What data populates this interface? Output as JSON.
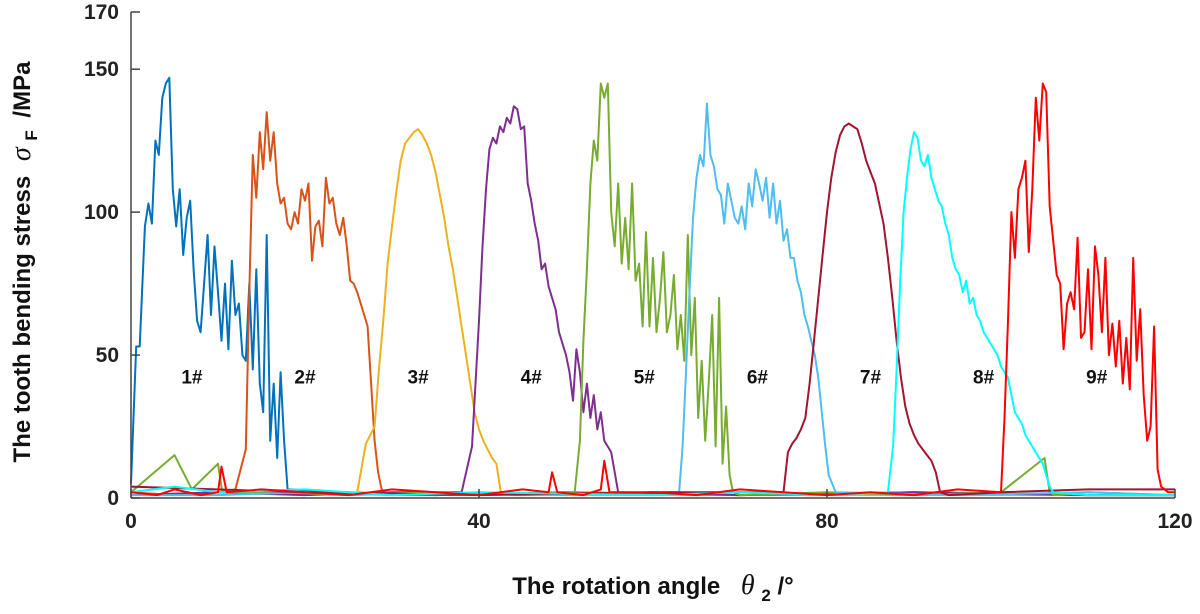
{
  "chart_data": {
    "type": "line",
    "title": "",
    "xlabel": {
      "prefix": "The rotation angle",
      "symbol": "θ",
      "subscript": "2",
      "unit": "/°"
    },
    "ylabel": {
      "prefix": "The tooth bending stress",
      "symbol": "σ",
      "subscript": "F",
      "unit": "/MPa"
    },
    "xlim": [
      0,
      120
    ],
    "ylim": [
      0,
      170
    ],
    "xticks": [
      0,
      40,
      80,
      120
    ],
    "yticks": [
      0,
      50,
      100,
      150,
      170
    ],
    "grid": false,
    "series": [
      {
        "name": "1#",
        "color": "#0072BD",
        "label_x": 7,
        "label_y": 40,
        "x": [
          0,
          0.6,
          1.0,
          1.6,
          2.0,
          2.4,
          2.8,
          3.2,
          3.6,
          4.0,
          4.4,
          4.8,
          5.2,
          5.6,
          6.0,
          6.4,
          6.8,
          7.2,
          7.6,
          8.0,
          8.4,
          8.8,
          9.2,
          9.6,
          10.0,
          10.4,
          10.8,
          11.2,
          11.6,
          12.0,
          12.4,
          12.8,
          13.2,
          13.6,
          14.0,
          14.4,
          14.8,
          15.2,
          15.6,
          16.0,
          16.4,
          16.8,
          17.2,
          17.6,
          18,
          25,
          35,
          50,
          70,
          90,
          110,
          120
        ],
        "y": [
          5,
          53,
          53,
          95,
          103,
          96,
          125,
          120,
          140,
          145,
          147,
          108,
          95,
          108,
          85,
          98,
          104,
          80,
          62,
          58,
          75,
          92,
          64,
          88,
          72,
          55,
          75,
          52,
          83,
          64,
          68,
          50,
          48,
          75,
          45,
          80,
          40,
          30,
          92,
          20,
          40,
          14,
          44,
          20,
          3,
          2,
          1,
          2,
          1,
          2,
          1,
          1
        ]
      },
      {
        "name": "2#",
        "color": "#D95319",
        "label_x": 20,
        "label_y": 40,
        "x": [
          0,
          5,
          10,
          12,
          13.2,
          13.6,
          14.0,
          14.4,
          14.8,
          15.2,
          15.6,
          16.0,
          16.4,
          16.8,
          17.2,
          17.6,
          18.0,
          18.4,
          18.8,
          19.2,
          19.6,
          20.0,
          20.4,
          20.8,
          21.2,
          21.6,
          22.0,
          22.4,
          22.8,
          23.2,
          23.6,
          24.0,
          24.4,
          24.8,
          25.2,
          25.6,
          26.0,
          26.4,
          26.8,
          27.2,
          27.6,
          28.0,
          28.4,
          28.8,
          29.5,
          35,
          50,
          70,
          90,
          110,
          120
        ],
        "y": [
          2,
          1,
          2,
          3,
          17,
          72,
          120,
          105,
          128,
          115,
          135,
          118,
          128,
          110,
          103,
          105,
          96,
          94,
          100,
          96,
          108,
          104,
          110,
          83,
          95,
          97,
          88,
          112,
          103,
          105,
          96,
          92,
          98,
          88,
          76,
          75,
          72,
          68,
          64,
          60,
          40,
          20,
          9,
          3,
          1,
          1,
          2,
          1,
          2,
          1,
          1
        ]
      },
      {
        "name": "3#",
        "color": "#EDB120",
        "label_x": 33,
        "label_y": 40,
        "x": [
          0,
          10,
          20,
          26,
          27,
          28,
          28.5,
          29,
          29.5,
          30,
          30.5,
          31,
          31.5,
          32,
          32.5,
          33,
          33.5,
          34,
          34.5,
          35,
          35.5,
          36,
          36.5,
          37,
          37.5,
          38,
          38.5,
          39,
          39.5,
          40,
          40.5,
          41,
          41.5,
          42,
          42.5,
          44,
          60,
          80,
          100,
          120
        ],
        "y": [
          1,
          2,
          1,
          2,
          19,
          25,
          45,
          62,
          82,
          95,
          107,
          118,
          124,
          126,
          128,
          129,
          127,
          124,
          120,
          114,
          106,
          98,
          88,
          80,
          70,
          60,
          50,
          40,
          30,
          24,
          20,
          17,
          14,
          12,
          2,
          1,
          1,
          1,
          1,
          1
        ]
      },
      {
        "name": "4#",
        "color": "#7E2F8E",
        "label_x": 46,
        "label_y": 40,
        "x": [
          0,
          10,
          20,
          30,
          38,
          39.2,
          39.6,
          40.0,
          40.4,
          40.8,
          41.2,
          41.6,
          42.0,
          42.4,
          42.8,
          43.2,
          43.6,
          44.0,
          44.4,
          44.8,
          45.2,
          45.6,
          46.0,
          46.4,
          46.8,
          47.2,
          47.6,
          48.0,
          48.4,
          48.8,
          49.2,
          49.6,
          50.0,
          50.4,
          50.8,
          51.2,
          51.6,
          52.0,
          52.4,
          52.8,
          53.2,
          53.6,
          54.0,
          54.4,
          54.8,
          55.2,
          56,
          70,
          90,
          110,
          120
        ],
        "y": [
          1,
          2,
          1,
          2,
          2,
          18,
          40,
          62,
          88,
          108,
          122,
          126,
          124,
          130,
          128,
          133,
          131,
          137,
          136,
          129,
          130,
          110,
          104,
          96,
          90,
          80,
          82,
          74,
          70,
          66,
          58,
          54,
          50,
          44,
          34,
          52,
          44,
          30,
          40,
          28,
          36,
          24,
          30,
          20,
          18,
          16,
          2,
          1,
          2,
          1,
          1
        ]
      },
      {
        "name": "5#",
        "color": "#77AC30",
        "label_x": 59,
        "label_y": 40,
        "x": [
          0,
          5,
          7,
          10,
          10.5,
          12,
          17,
          25,
          35,
          45,
          51,
          51.6,
          52.0,
          52.4,
          52.8,
          53.2,
          53.6,
          54.0,
          54.4,
          54.8,
          55.2,
          55.6,
          56.0,
          56.4,
          56.8,
          57.2,
          57.6,
          58.0,
          58.4,
          58.8,
          59.2,
          59.6,
          60.0,
          60.4,
          60.8,
          61.2,
          61.6,
          62.0,
          62.4,
          62.8,
          63.2,
          63.6,
          64.0,
          64.4,
          64.8,
          65.2,
          65.6,
          66.0,
          66.4,
          66.8,
          67.2,
          67.6,
          68.0,
          68.4,
          68.8,
          69.2,
          70,
          80,
          90,
          100,
          105,
          105.6,
          106.2,
          110,
          120
        ],
        "y": [
          2,
          15,
          3,
          12,
          2,
          2,
          2,
          1,
          2,
          1,
          2,
          20,
          55,
          80,
          110,
          125,
          118,
          145,
          140,
          145,
          100,
          88,
          110,
          82,
          98,
          80,
          110,
          76,
          82,
          60,
          93,
          60,
          84,
          58,
          70,
          86,
          58,
          64,
          78,
          52,
          64,
          48,
          92,
          50,
          70,
          28,
          48,
          20,
          40,
          64,
          18,
          70,
          12,
          32,
          8,
          2,
          1,
          2,
          1,
          2,
          14,
          2,
          1,
          2,
          1
        ]
      },
      {
        "name": "6#",
        "color": "#4DBEEE",
        "label_x": 72,
        "label_y": 40,
        "x": [
          0,
          10,
          20,
          30,
          40,
          50,
          60,
          63,
          63.4,
          63.8,
          64.2,
          64.6,
          65.0,
          65.4,
          65.8,
          66.2,
          66.6,
          67.0,
          67.4,
          67.8,
          68.2,
          68.6,
          69.0,
          69.4,
          69.8,
          70.2,
          70.6,
          71.0,
          71.4,
          71.8,
          72.2,
          72.6,
          73.0,
          73.4,
          73.8,
          74.2,
          74.6,
          75.0,
          75.4,
          75.8,
          76.2,
          76.6,
          77.0,
          77.4,
          77.8,
          78.2,
          78.6,
          79.0,
          79.4,
          79.8,
          80.2,
          81,
          95,
          110,
          120
        ],
        "y": [
          1,
          1,
          2,
          1,
          2,
          1,
          2,
          2,
          18,
          45,
          72,
          98,
          112,
          120,
          116,
          138,
          120,
          116,
          108,
          106,
          96,
          110,
          104,
          98,
          96,
          102,
          94,
          110,
          102,
          115,
          110,
          104,
          112,
          98,
          110,
          96,
          104,
          90,
          94,
          84,
          84,
          76,
          72,
          64,
          60,
          55,
          50,
          42,
          30,
          18,
          8,
          2,
          1,
          2,
          1
        ]
      },
      {
        "name": "7#",
        "color": "#A2142F",
        "label_x": 85,
        "label_y": 40,
        "x": [
          0,
          20,
          40,
          60,
          75,
          75.5,
          76,
          76.5,
          77,
          77.5,
          78,
          78.5,
          79,
          79.5,
          80,
          80.5,
          81,
          81.5,
          82,
          82.5,
          83,
          83.5,
          84,
          84.5,
          85,
          85.5,
          86,
          86.5,
          87,
          87.5,
          88,
          88.5,
          89,
          89.5,
          90,
          90.5,
          91,
          91.5,
          92,
          92.5,
          93,
          94,
          100,
          110,
          120
        ],
        "y": [
          4,
          2,
          1,
          2,
          2,
          16,
          19,
          21,
          24,
          28,
          40,
          55,
          70,
          85,
          100,
          112,
          121,
          127,
          130,
          131,
          130,
          129,
          124,
          118,
          114,
          110,
          103,
          96,
          84,
          70,
          55,
          42,
          32,
          26,
          22,
          19,
          17,
          15,
          13,
          9,
          2,
          1,
          2,
          3,
          3
        ]
      },
      {
        "name": "8#",
        "color": "#00FFFF",
        "label_x": 98,
        "label_y": 40,
        "x": [
          0,
          5,
          10,
          20,
          30,
          40,
          60,
          70,
          80,
          87,
          87.6,
          88.0,
          88.4,
          88.8,
          89.2,
          89.6,
          90.0,
          90.4,
          90.8,
          91.2,
          91.6,
          92.0,
          92.4,
          92.8,
          93.2,
          93.6,
          94.0,
          94.4,
          94.8,
          95.2,
          95.6,
          96.0,
          96.4,
          96.8,
          97.2,
          97.6,
          98.0,
          98.4,
          98.8,
          99.2,
          99.6,
          100.0,
          100.4,
          100.8,
          101.2,
          101.6,
          102.0,
          102.4,
          102.8,
          103.2,
          103.6,
          104.0,
          104.4,
          104.8,
          105.2,
          105.6,
          106,
          110,
          120
        ],
        "y": [
          2,
          4,
          2,
          3,
          1,
          2,
          1,
          2,
          1,
          2,
          18,
          45,
          75,
          100,
          112,
          122,
          128,
          126,
          118,
          116,
          120,
          112,
          108,
          104,
          102,
          96,
          92,
          84,
          80,
          78,
          72,
          76,
          68,
          70,
          64,
          62,
          58,
          56,
          54,
          52,
          50,
          46,
          44,
          42,
          36,
          30,
          28,
          26,
          22,
          20,
          18,
          16,
          14,
          12,
          8,
          4,
          2,
          1,
          1
        ]
      },
      {
        "name": "9#",
        "color": "#FF0000",
        "label_x": 111,
        "label_y": 40,
        "x": [
          0,
          3,
          5,
          8,
          10,
          10.4,
          11,
          15,
          20,
          25,
          30,
          35,
          40,
          45,
          48,
          48.4,
          49,
          52,
          54,
          54.4,
          55,
          60,
          65,
          70,
          75,
          80,
          85,
          90,
          95,
          100,
          100.4,
          100.8,
          101.2,
          101.6,
          102.0,
          102.4,
          102.8,
          103.2,
          103.6,
          104.0,
          104.4,
          104.8,
          105.2,
          105.6,
          106.0,
          106.4,
          106.8,
          107.2,
          107.6,
          108.0,
          108.4,
          108.8,
          109.2,
          109.6,
          110.0,
          110.4,
          110.8,
          111.2,
          111.6,
          112.0,
          112.4,
          112.8,
          113.2,
          113.6,
          114.0,
          114.4,
          114.8,
          115.2,
          115.6,
          116.0,
          116.4,
          116.8,
          117.2,
          117.6,
          118.0,
          118.4,
          118.8,
          119.2,
          119.6,
          120
        ],
        "y": [
          2,
          1,
          3,
          1,
          2,
          11,
          2,
          3,
          2,
          1,
          3,
          2,
          1,
          3,
          2,
          9,
          2,
          1,
          3,
          13,
          2,
          2,
          1,
          3,
          2,
          1,
          2,
          1,
          3,
          2,
          28,
          62,
          100,
          84,
          108,
          112,
          118,
          86,
          108,
          140,
          125,
          145,
          142,
          102,
          90,
          78,
          75,
          52,
          68,
          72,
          66,
          91,
          56,
          58,
          80,
          52,
          88,
          78,
          58,
          84,
          50,
          61,
          46,
          62,
          40,
          56,
          38,
          84,
          48,
          66,
          36,
          20,
          25,
          60,
          10,
          4,
          3,
          2,
          2,
          2
        ]
      }
    ]
  }
}
